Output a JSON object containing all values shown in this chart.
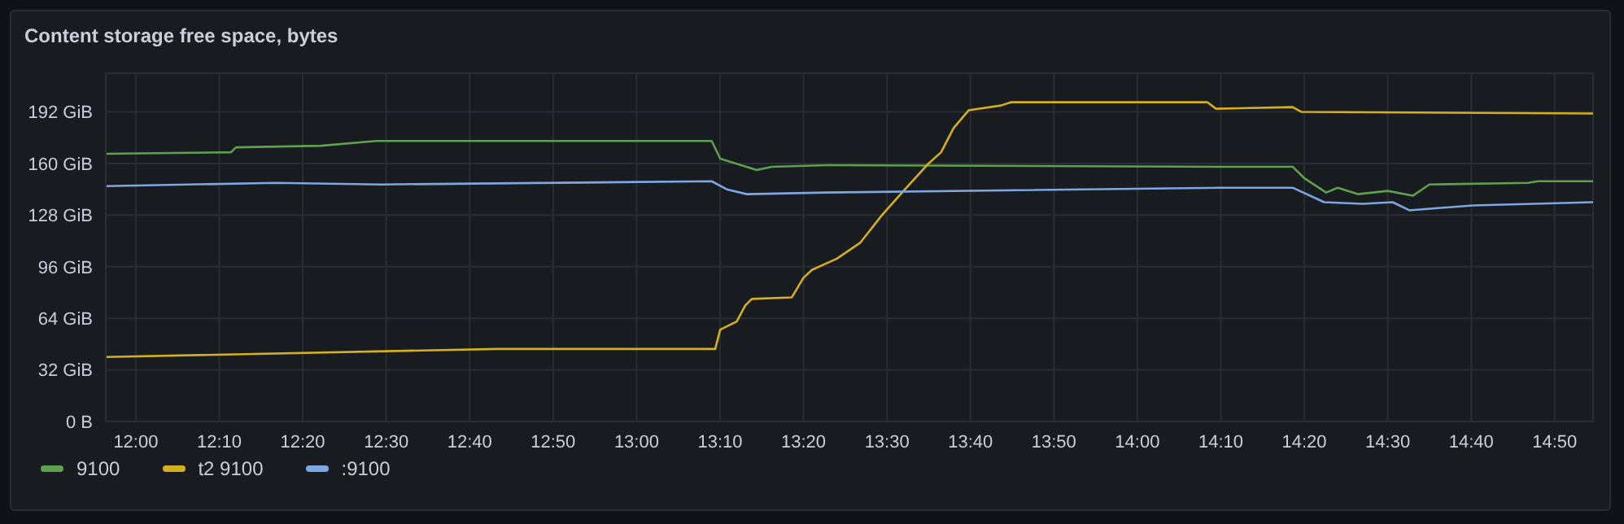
{
  "chart_data": {
    "type": "line",
    "title": "Content storage free space, bytes",
    "xlim": [
      11.94,
      14.91
    ],
    "xticks": [
      {
        "value": 12,
        "label": "12:00"
      },
      {
        "value": 12.1667,
        "label": "12:10"
      },
      {
        "value": 12.3333,
        "label": "12:20"
      },
      {
        "value": 12.5,
        "label": "12:30"
      },
      {
        "value": 12.6667,
        "label": "12:40"
      },
      {
        "value": 12.8333,
        "label": "12:50"
      },
      {
        "value": 13,
        "label": "13:00"
      },
      {
        "value": 13.1667,
        "label": "13:10"
      },
      {
        "value": 13.3333,
        "label": "13:20"
      },
      {
        "value": 13.5,
        "label": "13:30"
      },
      {
        "value": 13.6667,
        "label": "13:40"
      },
      {
        "value": 13.8333,
        "label": "13:50"
      },
      {
        "value": 14,
        "label": "14:00"
      },
      {
        "value": 14.1667,
        "label": "14:10"
      },
      {
        "value": 14.3333,
        "label": "14:20"
      },
      {
        "value": 14.5,
        "label": "14:30"
      },
      {
        "value": 14.6667,
        "label": "14:40"
      },
      {
        "value": 14.8333,
        "label": "14:50"
      }
    ],
    "ylim": [
      0,
      216
    ],
    "yticks": [
      {
        "value": 0,
        "label": "0 B"
      },
      {
        "value": 32,
        "label": "32 GiB"
      },
      {
        "value": 64,
        "label": "64 GiB"
      },
      {
        "value": 96,
        "label": "96 GiB"
      },
      {
        "value": 128,
        "label": "128 GiB"
      },
      {
        "value": 160,
        "label": "160 GiB"
      },
      {
        "value": 192,
        "label": "192 GiB"
      }
    ],
    "grid": true,
    "legend": "bottom left",
    "marker": "none",
    "line_style": "solid",
    "series": [
      {
        "name": "9100",
        "color": "#5fa04f",
        "x": [
          11.94,
          12.19,
          12.2,
          12.37,
          12.48,
          13.15,
          13.167,
          13.24,
          13.27,
          13.38,
          14.16,
          14.31,
          14.333,
          14.377,
          14.4,
          14.44,
          14.5,
          14.55,
          14.583,
          14.78,
          14.8,
          14.91
        ],
        "values": [
          166,
          167,
          170,
          171,
          174,
          174,
          163,
          156,
          158,
          159,
          158,
          158,
          151,
          142,
          145,
          141,
          143,
          140,
          147,
          148,
          149,
          149
        ]
      },
      {
        "name": "t2 9100",
        "color": "#d4b021",
        "x": [
          11.94,
          12.72,
          13.157,
          13.167,
          13.2,
          13.217,
          13.23,
          13.31,
          13.333,
          13.35,
          13.4,
          13.447,
          13.49,
          13.533,
          13.583,
          13.608,
          13.633,
          13.663,
          13.728,
          13.747,
          14.14,
          14.157,
          14.31,
          14.328,
          14.91
        ],
        "values": [
          40,
          45,
          45,
          57,
          62,
          72,
          76,
          77,
          89,
          94,
          101,
          111,
          128,
          143,
          160,
          167,
          182,
          193,
          196,
          198,
          198,
          194,
          195,
          192,
          191
        ]
      },
      {
        "name": ":9100",
        "color": "#7ea6e0",
        "x": [
          11.94,
          12.28,
          12.49,
          13.15,
          13.18,
          13.22,
          13.38,
          14.167,
          14.31,
          14.373,
          14.45,
          14.51,
          14.543,
          14.67,
          14.91
        ],
        "values": [
          146,
          148,
          147,
          149,
          144,
          141,
          142,
          145,
          145,
          136,
          135,
          136,
          131,
          134,
          136
        ]
      }
    ]
  }
}
